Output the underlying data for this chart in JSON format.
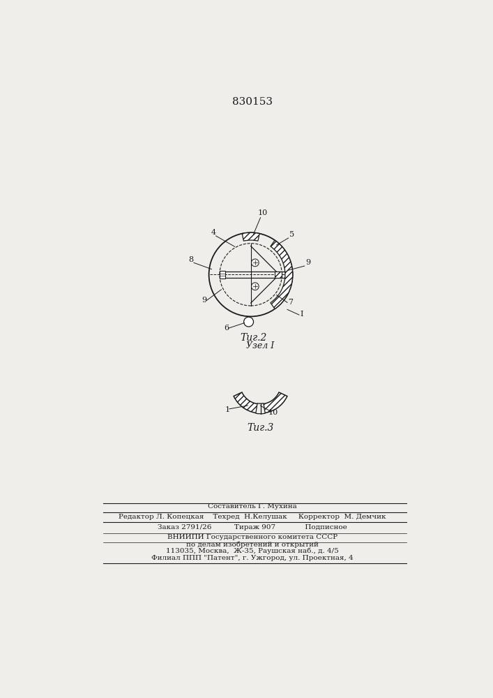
{
  "title": "830153",
  "fig2_label": "Τиг.2",
  "fig3_label": "Τиг.3",
  "node_label": "Узел I",
  "footer_lines": [
    "Составитель Г. Мухина",
    "Редактор Л. Копецкая    Техред  Н.Келушак     Корректор  М. Демчик",
    "Заказ 2791/26          Тираж 907             Подписное",
    "ВНИИПИ Государственного комитета СССР",
    "по делам изобретений и открытий",
    "113035, Москва,  Ж-35, Раушская наб., д. 4/5",
    "Филиал ППП \"Патент\", г. Ужгород, ул. Проектная, 4"
  ],
  "bg_color": "#f0eeea",
  "line_color": "#1a1a1a"
}
